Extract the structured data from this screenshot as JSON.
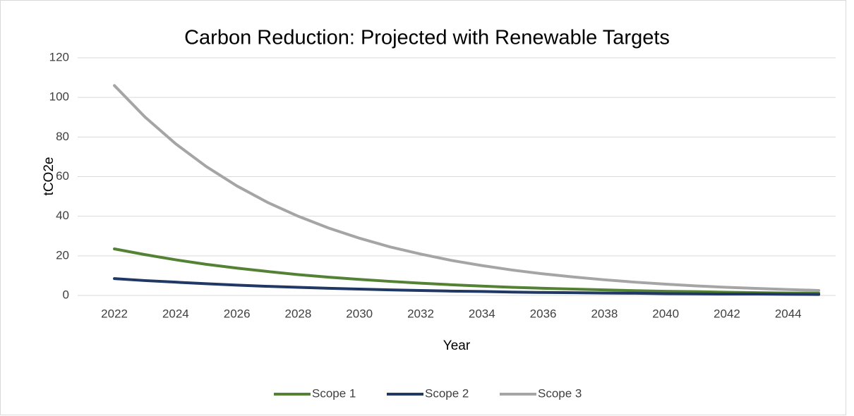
{
  "chart_data": {
    "type": "line",
    "title": "Carbon Reduction: Projected with Renewable Targets",
    "xlabel": "Year",
    "ylabel": "tCO2e",
    "x": [
      2022,
      2023,
      2024,
      2025,
      2026,
      2027,
      2028,
      2029,
      2030,
      2031,
      2032,
      2033,
      2034,
      2035,
      2036,
      2037,
      2038,
      2039,
      2040,
      2041,
      2042,
      2043,
      2044,
      2045
    ],
    "series": [
      {
        "name": "Scope 1",
        "color": "#548235",
        "values": [
          23.5,
          20.6,
          18.0,
          15.7,
          13.8,
          12.1,
          10.5,
          9.2,
          8.1,
          7.1,
          6.2,
          5.4,
          4.7,
          4.1,
          3.6,
          3.2,
          2.8,
          2.4,
          2.1,
          1.9,
          1.6,
          1.4,
          1.2,
          1.1
        ]
      },
      {
        "name": "Scope 2",
        "color": "#203864",
        "values": [
          8.5,
          7.5,
          6.7,
          5.9,
          5.2,
          4.6,
          4.1,
          3.6,
          3.2,
          2.8,
          2.5,
          2.2,
          2.0,
          1.7,
          1.5,
          1.4,
          1.2,
          1.1,
          0.9,
          0.8,
          0.7,
          0.7,
          0.6,
          0.5
        ]
      },
      {
        "name": "Scope 3",
        "color": "#a5a5a5",
        "values": [
          106,
          90.1,
          76.6,
          65.1,
          55.3,
          47.0,
          40.0,
          34.0,
          28.9,
          24.5,
          20.9,
          17.7,
          15.1,
          12.8,
          10.9,
          9.3,
          7.9,
          6.7,
          5.7,
          4.8,
          4.1,
          3.5,
          3.0,
          2.5
        ]
      }
    ],
    "xlim": [
      2020.8,
      2045.55
    ],
    "xticks": [
      2022,
      2024,
      2026,
      2028,
      2030,
      2032,
      2034,
      2036,
      2038,
      2040,
      2042,
      2044
    ],
    "ylim": [
      0,
      120
    ],
    "yticks": [
      0,
      20,
      40,
      60,
      80,
      100,
      120
    ],
    "grid": true,
    "legend": "bottom"
  }
}
